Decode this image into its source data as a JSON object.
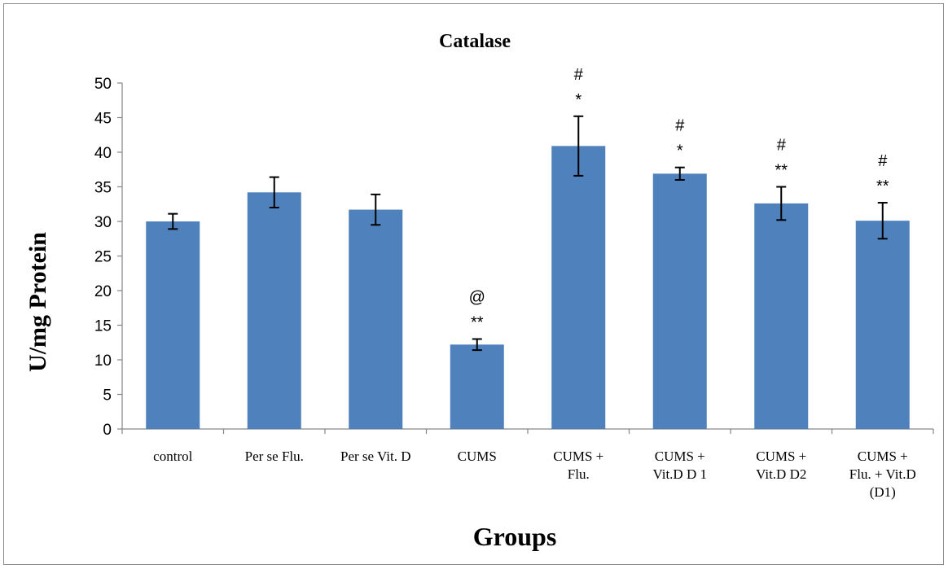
{
  "chart_data": {
    "type": "bar",
    "title": "Catalase",
    "xlabel": "Groups",
    "ylabel": "U/mg Protein",
    "ylim": [
      0,
      50
    ],
    "yticks": [
      0,
      5,
      10,
      15,
      20,
      25,
      30,
      35,
      40,
      45,
      50
    ],
    "grid": false,
    "legend": "none",
    "bar_color": "#4f81bd",
    "categories": [
      [
        "control"
      ],
      [
        "Per se Flu."
      ],
      [
        "Per se Vit. D"
      ],
      [
        "CUMS"
      ],
      [
        "CUMS +",
        "Flu."
      ],
      [
        "CUMS +",
        "Vit.D D 1"
      ],
      [
        "CUMS +",
        "Vit.D D2"
      ],
      [
        "CUMS +",
        "Flu. + Vit.D",
        "(D1)"
      ]
    ],
    "values": [
      30.0,
      34.2,
      31.7,
      12.2,
      40.9,
      36.9,
      32.6,
      30.1
    ],
    "errors": [
      1.1,
      2.2,
      2.2,
      0.8,
      4.3,
      0.9,
      2.4,
      2.6
    ],
    "annotations": [
      [],
      [],
      [],
      [
        "@",
        "**"
      ],
      [
        "#",
        "*"
      ],
      [
        "#",
        "*"
      ],
      [
        "#",
        "**"
      ],
      [
        "#",
        "**"
      ]
    ]
  }
}
